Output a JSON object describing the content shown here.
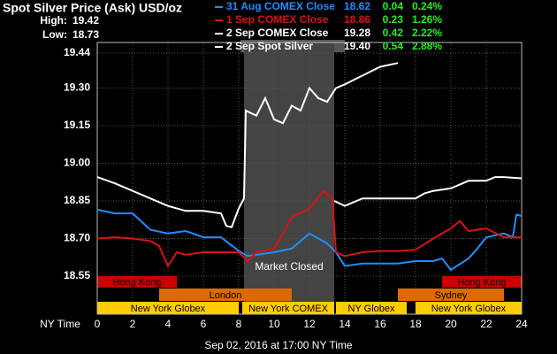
{
  "chart_data": {
    "type": "line",
    "title": "Spot Silver Price (Ask) USD/oz",
    "high_label": "High:",
    "high": 19.42,
    "low_label": "Low:",
    "low": 18.73,
    "x_label": "NY Time",
    "footer": "Sep 02, 2016 at 17:00 NY Time",
    "xlim": [
      0,
      24
    ],
    "xticks": [
      0,
      2,
      4,
      6,
      8,
      10,
      12,
      14,
      16,
      18,
      20,
      22,
      24
    ],
    "ylim": [
      18.398,
      19.482
    ],
    "yticks": [
      18.55,
      {
        "value": 18.7,
        "label": "18.70"
      },
      18.85,
      {
        "value": 19.0,
        "label": "19.00"
      },
      19.15,
      {
        "value": 19.3,
        "label": "19.30"
      },
      19.44
    ],
    "grid": true,
    "market_closed": {
      "label": "Market Closed",
      "x": [
        8.3,
        13.4
      ]
    },
    "sessions": [
      {
        "label": "Hong Kong",
        "row": 0,
        "x": [
          0,
          4.5
        ],
        "color": "#cc0000"
      },
      {
        "label": "Hong Kong",
        "row": 0,
        "x": [
          19.5,
          24
        ],
        "color": "#cc0000"
      },
      {
        "label": "London",
        "row": 1,
        "x": [
          3.5,
          11
        ],
        "color": "#dd6a00"
      },
      {
        "label": "Sydney",
        "row": 1,
        "x": [
          17,
          23
        ],
        "color": "#dd6a00"
      },
      {
        "label": "New York Globex",
        "row": 2,
        "x": [
          0,
          8
        ],
        "color": "#ffcc00"
      },
      {
        "label": "New York COMEX",
        "row": 2,
        "x": [
          8.2,
          13.4
        ],
        "color": "#ffcc00"
      },
      {
        "label": "NY Globex",
        "row": 2,
        "x": [
          13.5,
          17.5
        ],
        "color": "#ffcc00"
      },
      {
        "label": "New York Globex",
        "row": 2,
        "x": [
          18,
          24
        ],
        "color": "#ffcc00"
      }
    ],
    "series": [
      {
        "name": "31 Aug COMEX Close",
        "color": "#1e8fff",
        "close": "18.62",
        "change": "0.04",
        "pct": "0.24%",
        "x": [
          0,
          1,
          2,
          3,
          4,
          5,
          6,
          7,
          8,
          8.5,
          9,
          10,
          11,
          12,
          13,
          13.5,
          14,
          15,
          16,
          17,
          18,
          19,
          19.5,
          20,
          21,
          21.5,
          22,
          23,
          23.5,
          23.7,
          24
        ],
        "values": [
          18.815,
          18.8,
          18.8,
          18.735,
          18.72,
          18.73,
          18.705,
          18.705,
          18.65,
          18.63,
          18.635,
          18.645,
          18.66,
          18.72,
          18.68,
          18.645,
          18.59,
          18.6,
          18.6,
          18.6,
          18.61,
          18.61,
          18.62,
          18.575,
          18.62,
          18.66,
          18.705,
          18.72,
          18.705,
          18.795,
          18.79
        ]
      },
      {
        "name": "1 Sep COMEX Close",
        "color": "#e01010",
        "close": "18.86",
        "change": "0.23",
        "pct": "1.26%",
        "x": [
          0,
          1,
          2,
          3,
          3.5,
          4,
          4.5,
          5,
          6,
          7,
          8,
          8.5,
          9,
          10,
          10.5,
          11,
          12,
          12.8,
          13.3,
          13.5,
          14,
          15,
          16,
          17,
          18,
          19,
          20,
          20.5,
          21,
          22,
          23,
          24
        ],
        "values": [
          18.7,
          18.705,
          18.7,
          18.69,
          18.67,
          18.59,
          18.645,
          18.635,
          18.645,
          18.645,
          18.645,
          18.61,
          18.645,
          18.66,
          18.72,
          18.785,
          18.82,
          18.89,
          18.86,
          18.645,
          18.63,
          18.645,
          18.65,
          18.65,
          18.655,
          18.7,
          18.74,
          18.77,
          18.73,
          18.74,
          18.705,
          18.705
        ]
      },
      {
        "name": "2 Sep COMEX Close",
        "color": "#ffffff",
        "close": "19.28",
        "change": "0.42",
        "pct": "2.22%",
        "x": [
          13.4,
          14,
          15,
          16,
          17,
          18,
          18.5,
          19,
          20,
          21,
          22,
          22.5,
          23,
          24
        ],
        "values": [
          18.85,
          18.83,
          18.86,
          18.86,
          18.86,
          18.86,
          18.88,
          18.89,
          18.9,
          18.93,
          18.93,
          18.945,
          18.945,
          18.94
        ]
      },
      {
        "name": "2 Sep Spot Silver",
        "color": "#ffffff",
        "close": "19.40",
        "change": "0.54",
        "pct": "2.88%",
        "x": [
          0,
          1,
          2,
          3,
          4,
          5,
          6,
          7,
          7.3,
          7.6,
          8,
          8.3,
          8.4,
          9,
          9.5,
          10,
          10.5,
          11,
          11.5,
          12,
          12.5,
          13,
          13.5,
          14,
          15,
          16,
          17
        ],
        "values": [
          18.945,
          18.92,
          18.89,
          18.86,
          18.83,
          18.81,
          18.81,
          18.8,
          18.75,
          18.745,
          18.82,
          18.86,
          19.21,
          19.19,
          19.26,
          19.175,
          19.16,
          19.23,
          19.21,
          19.3,
          19.26,
          19.245,
          19.3,
          19.315,
          19.35,
          19.385,
          19.4
        ]
      }
    ]
  }
}
